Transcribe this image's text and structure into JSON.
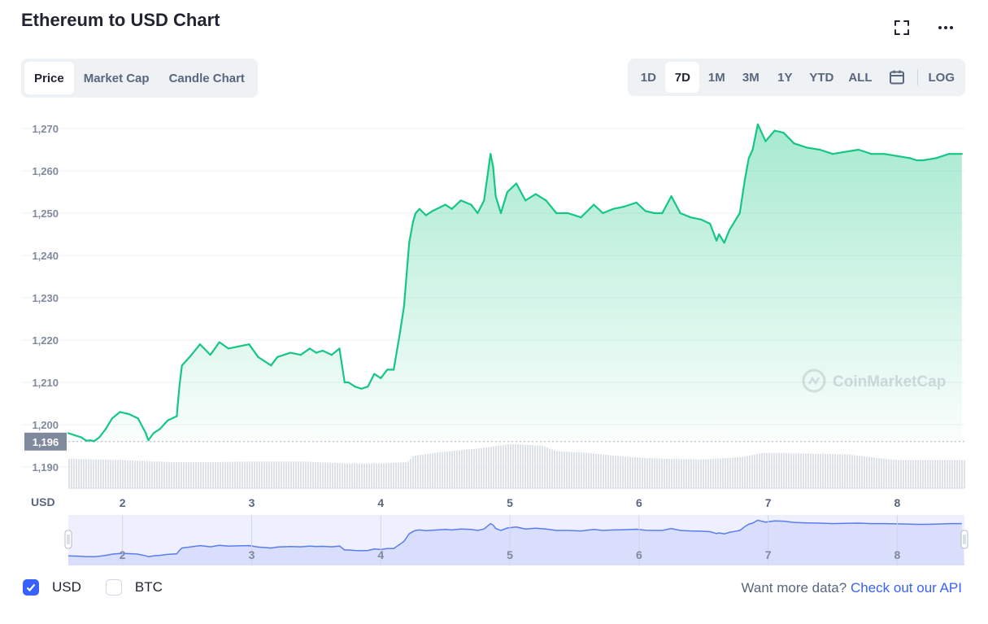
{
  "title": "Ethereum to USD Chart",
  "icons": {
    "fullscreen": "fullscreen-icon",
    "more": "more-icon",
    "calendar": "calendar-icon",
    "watermark": "coinmarketcap-logo-icon"
  },
  "tabs": [
    {
      "label": "Price",
      "active": true
    },
    {
      "label": "Market Cap",
      "active": false
    },
    {
      "label": "Candle Chart",
      "active": false
    }
  ],
  "ranges": [
    {
      "label": "1D",
      "active": false
    },
    {
      "label": "7D",
      "active": true
    },
    {
      "label": "1M",
      "active": false
    },
    {
      "label": "3M",
      "active": false
    },
    {
      "label": "1Y",
      "active": false
    },
    {
      "label": "YTD",
      "active": false
    },
    {
      "label": "ALL",
      "active": false
    }
  ],
  "log_label": "LOG",
  "legend": [
    {
      "label": "USD",
      "checked": true
    },
    {
      "label": "BTC",
      "checked": false
    }
  ],
  "api": {
    "prefix": "Want more data?",
    "link": "Check out our API"
  },
  "watermark_text": "CoinMarketCap",
  "colors": {
    "line": "#16c784",
    "line_down": "#ea3943",
    "accent": "#3861fb",
    "volume": "#dde1e8",
    "nav": "#5b7bf0"
  },
  "chart_data": {
    "type": "line",
    "title": "Ethereum to USD Chart",
    "ylabel": "USD",
    "ylim": [
      1185,
      1275
    ],
    "y_ticks": [
      1190,
      1200,
      1210,
      1220,
      1230,
      1240,
      1250,
      1260,
      1270
    ],
    "y_tick_labels": [
      "1,190",
      "1,200",
      "1,210",
      "1,220",
      "1,230",
      "1,240",
      "1,250",
      "1,260",
      "1,270"
    ],
    "xlim": [
      1.58,
      8.52
    ],
    "x_ticks": [
      2,
      3,
      4,
      5,
      6,
      7,
      8
    ],
    "x_tick_labels": [
      "2",
      "3",
      "4",
      "5",
      "6",
      "7",
      "8"
    ],
    "baseline": 1196,
    "baseline_label": "1,196",
    "grid": true,
    "series": [
      {
        "x": [
          1.58,
          1.63,
          1.68,
          1.72,
          1.75,
          1.78,
          1.82,
          1.87,
          1.92,
          1.98,
          2.05,
          2.12,
          2.18,
          2.2,
          2.24,
          2.29,
          2.35,
          2.42,
          2.44,
          2.46,
          2.52,
          2.6,
          2.68,
          2.75,
          2.82,
          2.9,
          2.98,
          3.05,
          3.1,
          3.15,
          3.2,
          3.3,
          3.38,
          3.45,
          3.5,
          3.55,
          3.62,
          3.68,
          3.72,
          3.75,
          3.8,
          3.85,
          3.9,
          3.95,
          4.0,
          4.05,
          4.1,
          4.15,
          4.18,
          4.22,
          4.25,
          4.27,
          4.3,
          4.35,
          4.4,
          4.5,
          4.55,
          4.62,
          4.7,
          4.75,
          4.8,
          4.85,
          4.87,
          4.89,
          4.93,
          4.98,
          5.05,
          5.12,
          5.2,
          5.28,
          5.36,
          5.45,
          5.55,
          5.65,
          5.72,
          5.8,
          5.88,
          5.98,
          6.05,
          6.12,
          6.18,
          6.25,
          6.32,
          6.4,
          6.48,
          6.55,
          6.6,
          6.62,
          6.66,
          6.7,
          6.74,
          6.78,
          6.82,
          6.85,
          6.88,
          6.92,
          6.98,
          7.05,
          7.12,
          7.2,
          7.3,
          7.4,
          7.5,
          7.6,
          7.7,
          7.8,
          7.9,
          8.0,
          8.1,
          8.15,
          8.2,
          8.3,
          8.4,
          8.5
        ],
        "y": [
          1198,
          1197.5,
          1197,
          1196.2,
          1196.3,
          1196.1,
          1197,
          1199,
          1201.5,
          1203,
          1202.5,
          1201.5,
          1198,
          1196.3,
          1198,
          1199,
          1201,
          1202,
          1209,
          1214,
          1216,
          1219,
          1216.5,
          1219.5,
          1218,
          1218.5,
          1219,
          1216,
          1215,
          1214,
          1216,
          1217,
          1216.5,
          1218,
          1217,
          1217.5,
          1216.5,
          1218,
          1210,
          1210,
          1209,
          1208.5,
          1209,
          1212,
          1211,
          1213,
          1213,
          1222,
          1228,
          1243,
          1248,
          1250,
          1251,
          1249.5,
          1250.5,
          1252,
          1251,
          1253,
          1252,
          1250,
          1253,
          1264,
          1261,
          1254,
          1250,
          1255,
          1257,
          1253,
          1254.5,
          1253,
          1250,
          1250,
          1249,
          1252,
          1250,
          1251,
          1251.5,
          1252.5,
          1250.5,
          1250,
          1250,
          1254,
          1250,
          1249,
          1248.5,
          1247.5,
          1243.5,
          1245,
          1243,
          1246,
          1248,
          1250,
          1258,
          1263,
          1265,
          1271,
          1267,
          1269.5,
          1269,
          1266.5,
          1265.5,
          1265,
          1264,
          1264.5,
          1265,
          1264,
          1264,
          1263.5,
          1263,
          1262.5,
          1262.5,
          1263,
          1264,
          1264
        ]
      }
    ],
    "volume": {
      "x": [
        1.58,
        2.0,
        2.4,
        2.7,
        3.0,
        3.4,
        3.7,
        4.0,
        4.2,
        4.25,
        4.5,
        4.8,
        5.0,
        5.25,
        5.35,
        5.6,
        5.9,
        6.2,
        6.5,
        6.8,
        6.95,
        7.3,
        7.6,
        7.9,
        8.0,
        8.5
      ],
      "values": [
        0.45,
        0.43,
        0.4,
        0.4,
        0.41,
        0.41,
        0.38,
        0.38,
        0.4,
        0.5,
        0.56,
        0.62,
        0.68,
        0.65,
        0.57,
        0.54,
        0.48,
        0.45,
        0.44,
        0.48,
        0.54,
        0.53,
        0.52,
        0.45,
        0.43,
        0.43
      ]
    }
  }
}
